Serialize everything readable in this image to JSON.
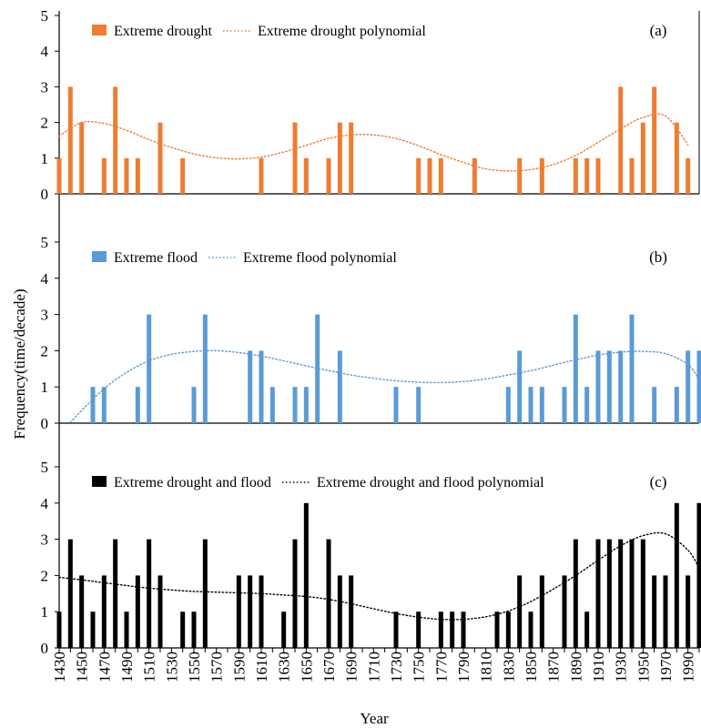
{
  "figure": {
    "ylabel": "Frequency(time/decade)",
    "xlabel": "Year",
    "x_tick_labels": [
      "1430",
      "1450",
      "1470",
      "1490",
      "1510",
      "1530",
      "1550",
      "1570",
      "1590",
      "1610",
      "1630",
      "1650",
      "1670",
      "1690",
      "1710",
      "1730",
      "1750",
      "1770",
      "1790",
      "1810",
      "1830",
      "1850",
      "1870",
      "1890",
      "1910",
      "1930",
      "1950",
      "1970",
      "1990"
    ]
  },
  "chart_data": [
    {
      "type": "bar",
      "panel": "(a)",
      "ylim": [
        0,
        5
      ],
      "yticks": [
        0,
        1,
        2,
        3,
        4,
        5
      ],
      "xlim": [
        1430,
        2000
      ],
      "legend_position": "top-left",
      "colors": {
        "bar": "#ed7d31",
        "trend": "#ed7d31"
      },
      "legend": [
        "Extreme drought",
        "Extreme drought polynomial"
      ],
      "series": [
        {
          "name": "Extreme drought",
          "x": [
            1430,
            1440,
            1450,
            1470,
            1480,
            1490,
            1500,
            1520,
            1540,
            1610,
            1640,
            1650,
            1670,
            1680,
            1690,
            1750,
            1760,
            1770,
            1800,
            1840,
            1860,
            1890,
            1900,
            1910,
            1930,
            1940,
            1950,
            1960,
            1980,
            1990
          ],
          "values": [
            1,
            3,
            2,
            1,
            3,
            1,
            1,
            2,
            1,
            1,
            2,
            1,
            1,
            2,
            2,
            1,
            1,
            1,
            1,
            1,
            1,
            1,
            1,
            1,
            3,
            1,
            2,
            3,
            2,
            1
          ]
        },
        {
          "name": "Extreme drought polynomial",
          "x": [
            1430,
            1450,
            1470,
            1490,
            1510,
            1530,
            1550,
            1570,
            1590,
            1610,
            1630,
            1650,
            1670,
            1690,
            1710,
            1730,
            1750,
            1770,
            1790,
            1810,
            1830,
            1850,
            1870,
            1890,
            1910,
            1930,
            1950,
            1970,
            1990
          ],
          "values": [
            1.62,
            2.0,
            1.97,
            1.78,
            1.52,
            1.3,
            1.12,
            1.01,
            0.98,
            1.03,
            1.17,
            1.36,
            1.55,
            1.65,
            1.65,
            1.55,
            1.35,
            1.1,
            0.88,
            0.7,
            0.64,
            0.68,
            0.82,
            1.08,
            1.44,
            1.82,
            2.14,
            2.18,
            1.38
          ]
        }
      ]
    },
    {
      "type": "bar",
      "panel": "(b)",
      "ylim": [
        0,
        5
      ],
      "yticks": [
        0,
        1,
        2,
        3,
        4,
        5
      ],
      "xlim": [
        1430,
        2000
      ],
      "legend_position": "top-left",
      "colors": {
        "bar": "#5b9bd5",
        "trend": "#5b9bd5"
      },
      "legend": [
        "Extreme flood",
        "Extreme flood polynomial"
      ],
      "series": [
        {
          "name": "Extreme flood",
          "x": [
            1460,
            1470,
            1500,
            1510,
            1550,
            1560,
            1600,
            1610,
            1620,
            1640,
            1650,
            1660,
            1680,
            1730,
            1750,
            1830,
            1840,
            1850,
            1860,
            1880,
            1890,
            1900,
            1910,
            1920,
            1930,
            1940,
            1960,
            1980,
            1990,
            2000
          ],
          "values": [
            1,
            1,
            1,
            3,
            1,
            3,
            2,
            2,
            1,
            1,
            1,
            3,
            2,
            1,
            1,
            1,
            2,
            1,
            1,
            1,
            3,
            1,
            2,
            2,
            2,
            3,
            1,
            1,
            2,
            2
          ]
        },
        {
          "name": "Extreme flood polynomial",
          "x": [
            1440,
            1450,
            1470,
            1490,
            1510,
            1530,
            1550,
            1570,
            1590,
            1610,
            1630,
            1650,
            1670,
            1690,
            1710,
            1730,
            1750,
            1770,
            1790,
            1810,
            1830,
            1850,
            1870,
            1890,
            1910,
            1930,
            1950,
            1970,
            1990,
            2000
          ],
          "values": [
            0.02,
            0.35,
            0.95,
            1.4,
            1.72,
            1.9,
            1.98,
            2.0,
            1.95,
            1.85,
            1.72,
            1.58,
            1.45,
            1.33,
            1.24,
            1.17,
            1.13,
            1.12,
            1.15,
            1.22,
            1.33,
            1.45,
            1.6,
            1.75,
            1.88,
            1.96,
            1.98,
            1.92,
            1.62,
            1.2
          ]
        }
      ]
    },
    {
      "type": "bar",
      "panel": "(c)",
      "ylim": [
        0,
        5
      ],
      "yticks": [
        0,
        1,
        2,
        3,
        4,
        5
      ],
      "xlim": [
        1430,
        2000
      ],
      "legend_position": "top-left",
      "colors": {
        "bar": "#000000",
        "trend": "#000000"
      },
      "legend": [
        "Extreme drought and flood",
        "Extreme drought and flood polynomial"
      ],
      "series": [
        {
          "name": "Extreme drought and flood",
          "x": [
            1430,
            1440,
            1450,
            1460,
            1470,
            1480,
            1490,
            1500,
            1510,
            1520,
            1540,
            1550,
            1560,
            1590,
            1600,
            1610,
            1630,
            1640,
            1650,
            1670,
            1680,
            1690,
            1730,
            1750,
            1770,
            1780,
            1790,
            1820,
            1830,
            1840,
            1850,
            1860,
            1880,
            1890,
            1900,
            1910,
            1920,
            1930,
            1940,
            1950,
            1960,
            1970,
            1980,
            1990,
            2000
          ],
          "values": [
            1,
            3,
            2,
            1,
            2,
            3,
            1,
            2,
            3,
            2,
            1,
            1,
            3,
            2,
            2,
            2,
            1,
            3,
            4,
            3,
            2,
            2,
            1,
            1,
            1,
            1,
            1,
            1,
            1,
            2,
            1,
            2,
            2,
            3,
            1,
            3,
            3,
            3,
            3,
            3,
            2,
            2,
            4,
            2,
            4
          ]
        },
        {
          "name": "Extreme drought and flood polynomial",
          "x": [
            1430,
            1450,
            1470,
            1490,
            1510,
            1530,
            1550,
            1570,
            1590,
            1610,
            1630,
            1650,
            1670,
            1690,
            1710,
            1730,
            1750,
            1770,
            1790,
            1810,
            1830,
            1850,
            1870,
            1890,
            1910,
            1930,
            1950,
            1970,
            1990,
            2000
          ],
          "values": [
            1.95,
            1.88,
            1.8,
            1.72,
            1.65,
            1.6,
            1.56,
            1.54,
            1.52,
            1.5,
            1.46,
            1.42,
            1.34,
            1.22,
            1.08,
            0.95,
            0.85,
            0.79,
            0.79,
            0.86,
            1.02,
            1.28,
            1.62,
            2.0,
            2.42,
            2.82,
            3.1,
            3.15,
            2.7,
            2.2
          ]
        }
      ]
    }
  ]
}
